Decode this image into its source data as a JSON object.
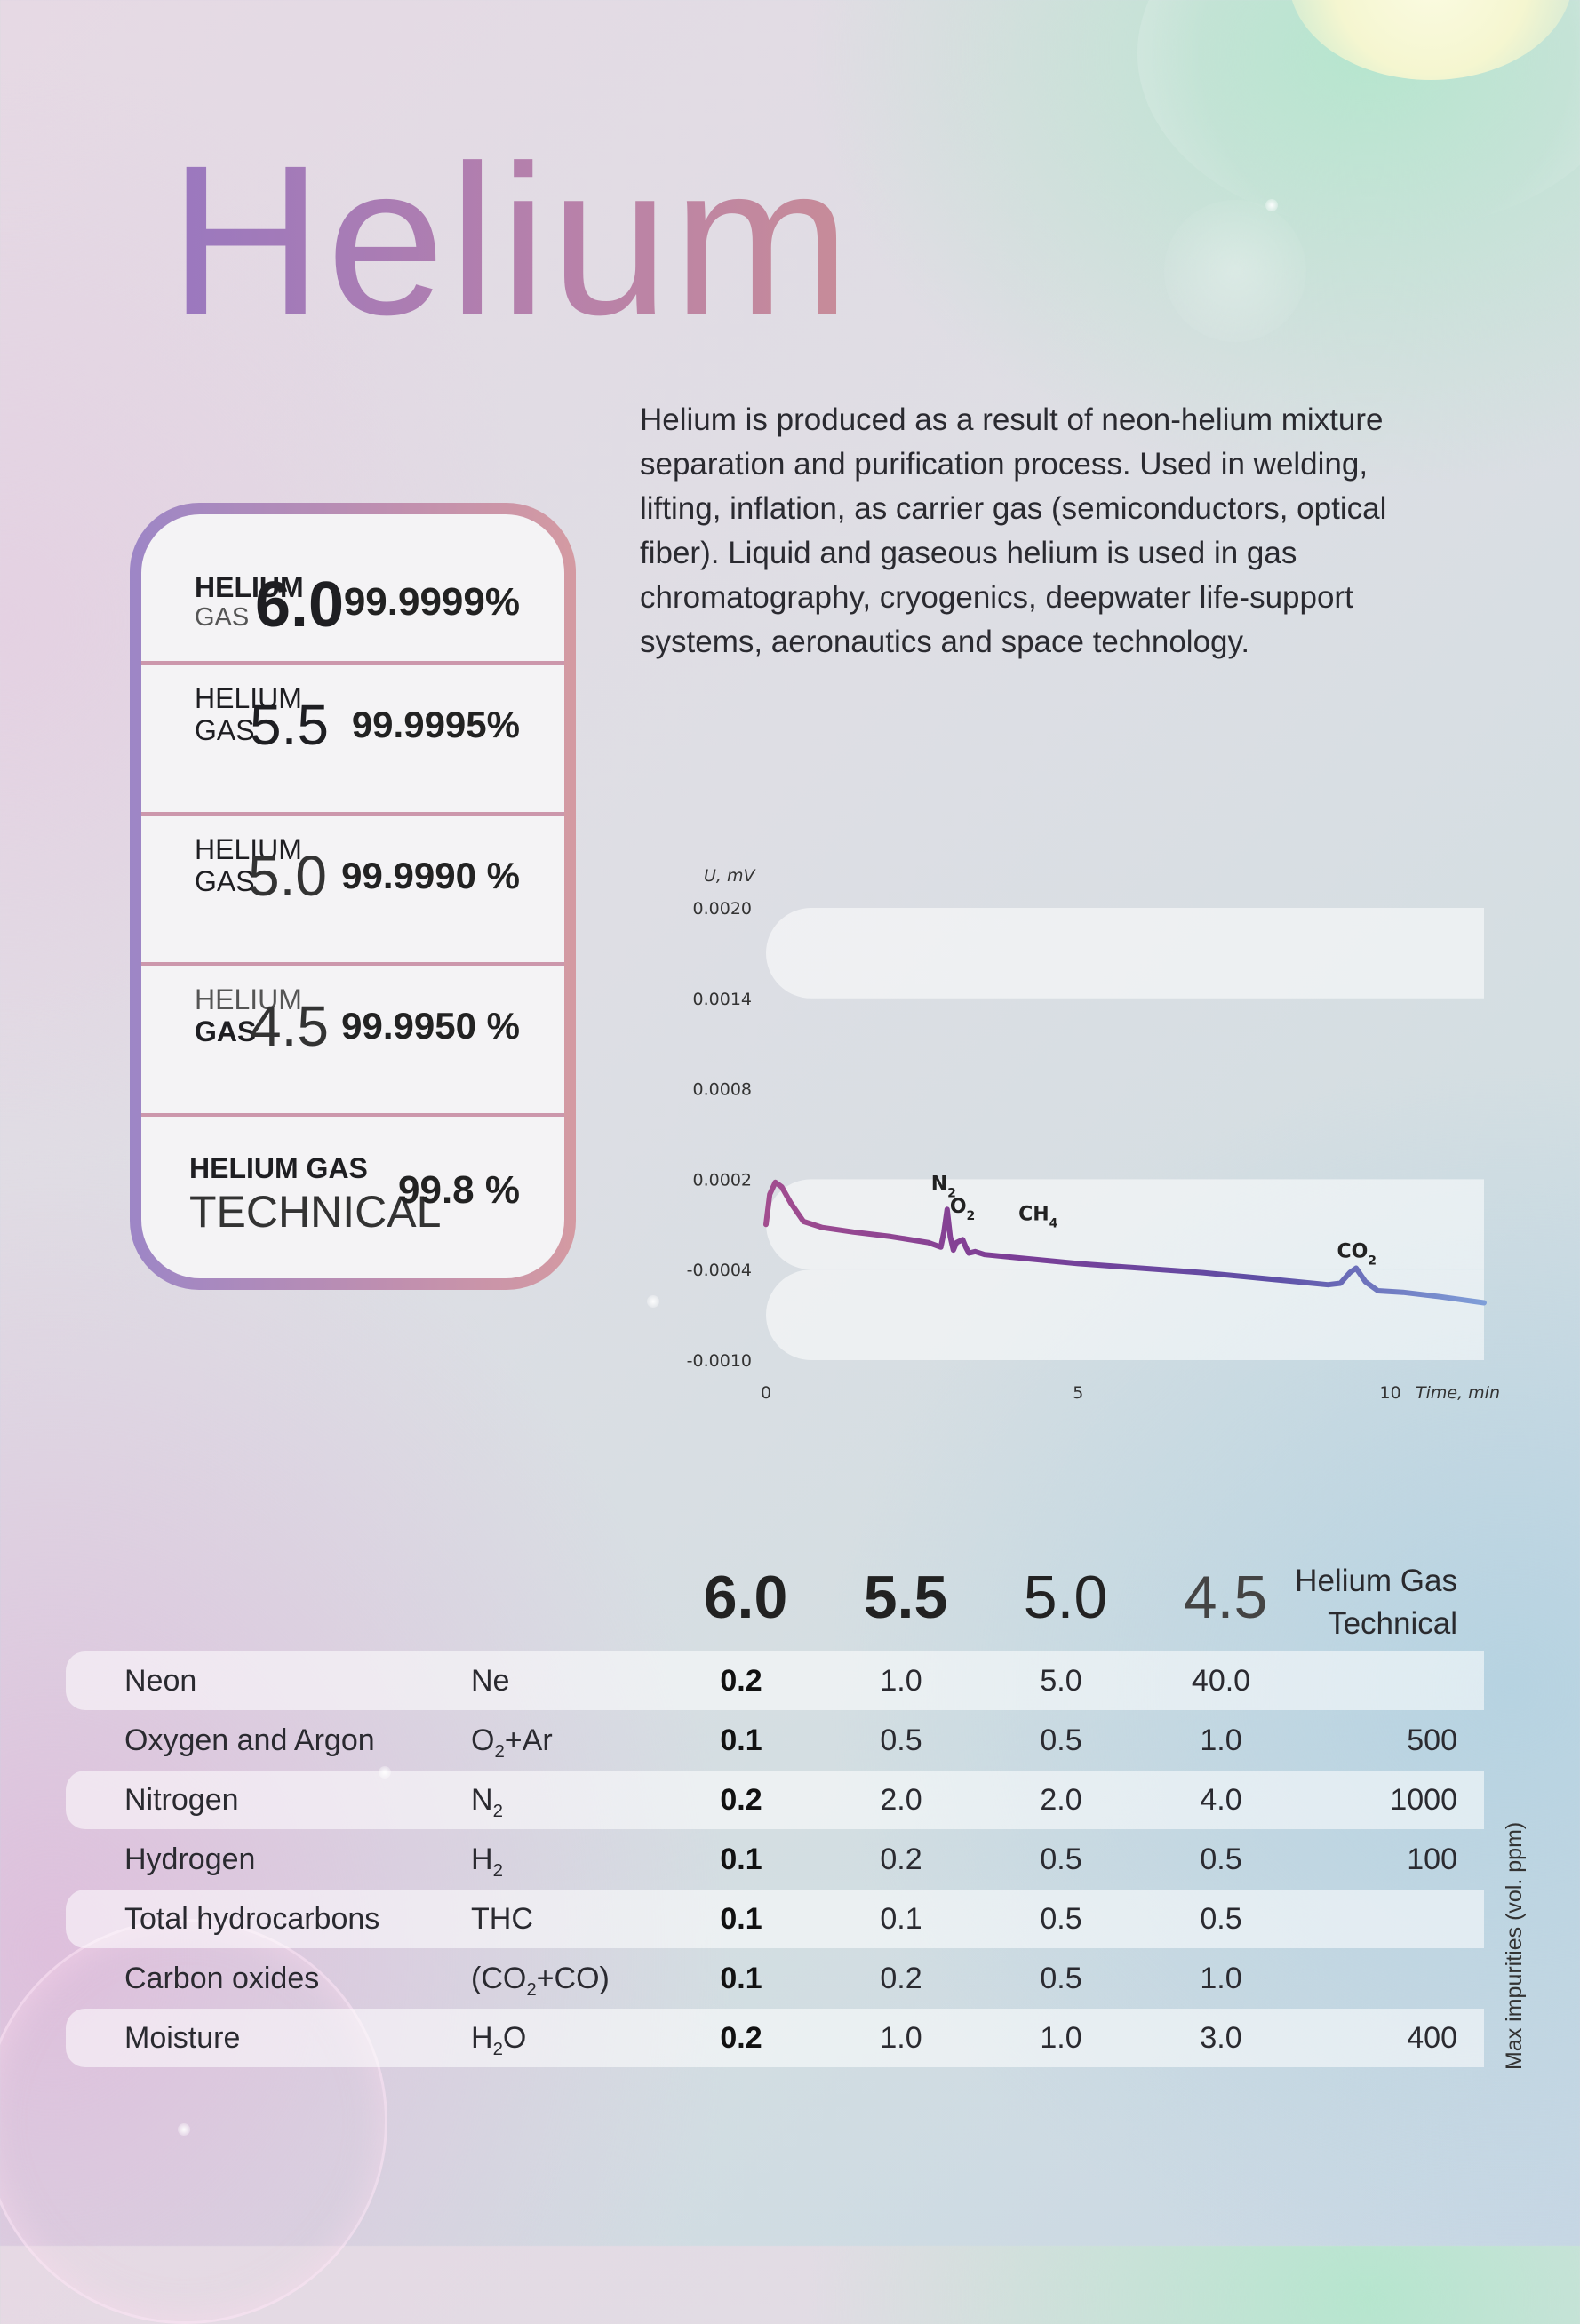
{
  "title": "Helium",
  "description": "Helium is produced as a result of neon-helium mixture separation and purification process. Used in welding, lifting, inflation, as carrier gas (semiconductors, optical fiber). Liquid and gaseous helium is used in gas chromatography, cryogenics, deepwater life-support systems, aeronautics and space technology.",
  "grades": [
    {
      "word1": "HELIUM",
      "word2": "GAS",
      "num": "6.0",
      "purity": "99.9999%"
    },
    {
      "word1": "HELIUM",
      "word2": "GAS",
      "num": "5.5",
      "purity": "99.9995%"
    },
    {
      "word1": "HELIUM",
      "word2": "GAS",
      "num": "5.0",
      "purity": "99.9990 %"
    },
    {
      "word1": "HELIUM",
      "word2": "GAS",
      "num": "4.5",
      "purity": "99.9950 %"
    },
    {
      "word1": "HELIUM GAS",
      "word2": "TECHNICAL",
      "num": "",
      "purity": "99.8 %"
    }
  ],
  "chart_data": {
    "type": "line",
    "ylabel": "U, mV",
    "xlabel": "Time, min",
    "yticks": [
      "0.0020",
      "0.0014",
      "0.0008",
      "0.0002",
      "-0.0004",
      "-0.0010"
    ],
    "xticks": [
      "0",
      "5",
      "10"
    ],
    "ylim": [
      -0.001,
      0.002
    ],
    "xlim": [
      0,
      11.5
    ],
    "peaks": [
      {
        "label": "N",
        "sub": "2",
        "x": 2.9,
        "y": 0.0
      },
      {
        "label": "O",
        "sub": "2",
        "x": 3.2,
        "y": -0.00015
      },
      {
        "label": "CH",
        "sub": "4",
        "x": 4.3,
        "y": -0.0002
      },
      {
        "label": "CO",
        "sub": "2",
        "x": 9.4,
        "y": -0.00045
      }
    ],
    "series": [
      {
        "x": [
          0,
          0.06,
          0.15,
          0.25,
          0.4,
          0.6,
          0.9,
          1.4,
          2.0,
          2.6,
          2.8,
          2.85,
          2.9,
          2.95,
          3.0,
          3.05,
          3.15,
          3.2,
          3.25,
          3.35,
          3.5,
          4.0,
          5.0,
          6.0,
          7.0,
          8.0,
          9.0,
          9.2,
          9.35,
          9.45,
          9.6,
          9.8,
          10.2,
          10.8,
          11.5
        ],
        "y": [
          -0.0001,
          0.0001,
          0.00018,
          0.00015,
          4e-05,
          -8e-05,
          -0.00012,
          -0.00015,
          -0.00018,
          -0.00022,
          -0.00025,
          -0.00015,
          0.0,
          -0.00018,
          -0.00027,
          -0.00022,
          -0.0002,
          -0.00025,
          -0.00029,
          -0.00028,
          -0.0003,
          -0.00032,
          -0.00036,
          -0.00039,
          -0.00042,
          -0.00046,
          -0.0005,
          -0.00049,
          -0.00042,
          -0.00039,
          -0.00048,
          -0.00054,
          -0.00055,
          -0.00058,
          -0.00062
        ]
      }
    ],
    "bands": [
      [
        0.0014,
        0.002
      ],
      [
        -0.0004,
        0.0002
      ],
      [
        -0.001,
        -0.0004
      ]
    ]
  },
  "table": {
    "headers": [
      "6.0",
      "5.5",
      "5.0",
      "4.5"
    ],
    "tech_header": "Helium Gas Technical",
    "side_label": "Max impurities (vol. ppm)",
    "rows": [
      {
        "name": "Neon",
        "sym": "Ne",
        "v60": "0.2",
        "v55": "1.0",
        "v50": "5.0",
        "v45": "40.0",
        "tech": ""
      },
      {
        "name": "Oxygen and Argon",
        "sym_html": "O<sub>2</sub>+Ar",
        "v60": "0.1",
        "v55": "0.5",
        "v50": "0.5",
        "v45": "1.0",
        "tech": "500"
      },
      {
        "name": "Nitrogen",
        "sym_html": "N<sub>2</sub>",
        "v60": "0.2",
        "v55": "2.0",
        "v50": "2.0",
        "v45": "4.0",
        "tech": "1000"
      },
      {
        "name": "Hydrogen",
        "sym_html": "H<sub>2</sub>",
        "v60": "0.1",
        "v55": "0.2",
        "v50": "0.5",
        "v45": "0.5",
        "tech": "100"
      },
      {
        "name": "Total hydrocarbons",
        "sym": "THC",
        "v60": "0.1",
        "v55": "0.1",
        "v50": "0.5",
        "v45": "0.5",
        "tech": ""
      },
      {
        "name": "Carbon oxides",
        "sym_html": "(CO<sub>2</sub>+CO)",
        "v60": "0.1",
        "v55": "0.2",
        "v50": "0.5",
        "v45": "1.0",
        "tech": ""
      },
      {
        "name": "Moisture",
        "sym_html": "H<sub>2</sub>O",
        "v60": "0.2",
        "v55": "1.0",
        "v50": "1.0",
        "v45": "3.0",
        "tech": "400"
      }
    ]
  }
}
